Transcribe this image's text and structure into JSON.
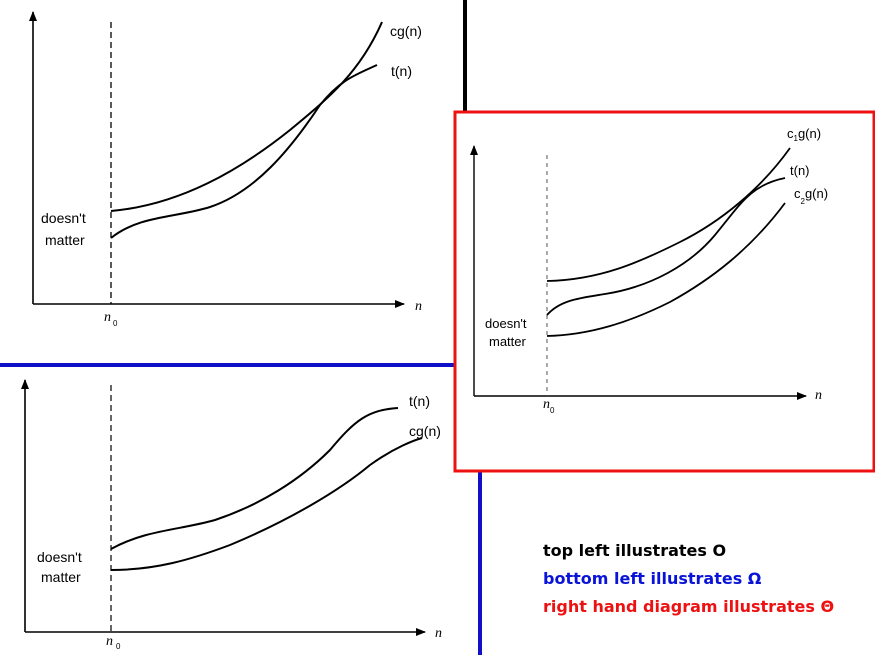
{
  "diagrams": {
    "big_o": {
      "upper_curve_label": "cg(n)",
      "function_label": "t(n)",
      "region_label_line1": "doesn't",
      "region_label_line2": "matter",
      "x_axis_label": "n",
      "threshold_label": "n",
      "threshold_subscript": "0"
    },
    "big_omega": {
      "function_label": "t(n)",
      "lower_curve_label": "cg(n)",
      "region_label_line1": "doesn't",
      "region_label_line2": "matter",
      "x_axis_label": "n",
      "threshold_label": "n",
      "threshold_subscript": "0"
    },
    "big_theta": {
      "upper_curve_label_prefix": "c",
      "upper_curve_subscript": "1",
      "upper_curve_label_suffix": "g(n)",
      "function_label": "t(n)",
      "lower_curve_label_prefix": "c",
      "lower_curve_subscript": "2",
      "lower_curve_label_suffix": "g(n)",
      "region_label_line1": "doesn't",
      "region_label_line2": "matter",
      "x_axis_label": "n",
      "threshold_label": "n",
      "threshold_subscript": "0"
    }
  },
  "captions": {
    "top_left": "top left illustrates O",
    "bottom_left": "bottom left illustrates Ω",
    "right_hand": "right hand diagram illustrates Θ"
  },
  "colors": {
    "divider_black": "#000000",
    "divider_blue": "#1010c8",
    "frame_red": "#ee1111",
    "caption_black": "#000000",
    "caption_blue": "#0a14d8",
    "caption_red": "#ee1111"
  }
}
